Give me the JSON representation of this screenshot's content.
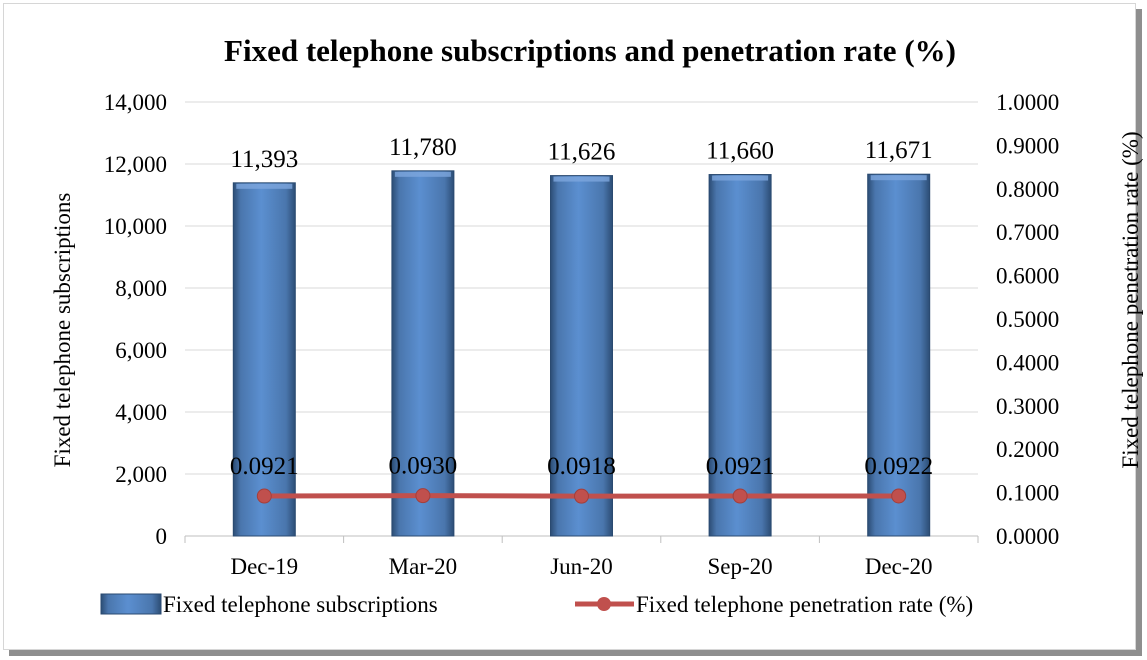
{
  "chart_data": {
    "type": "bar",
    "title": "Fixed telephone subscriptions and penetration rate (%)",
    "categories": [
      "Dec-19",
      "Mar-20",
      "Jun-20",
      "Sep-20",
      "Dec-20"
    ],
    "series": [
      {
        "name": "Fixed telephone subscriptions",
        "type": "bar",
        "axis": "left",
        "values": [
          11393,
          11780,
          11626,
          11660,
          11671
        ],
        "labels": [
          "11,393",
          "11,780",
          "11,626",
          "11,660",
          "11,671"
        ],
        "color": "#4f81bd"
      },
      {
        "name": "Fixed telephone penetration rate (%)",
        "type": "line",
        "axis": "right",
        "values": [
          0.0921,
          0.093,
          0.0918,
          0.0921,
          0.0922
        ],
        "labels": [
          "0.0921",
          "0.0930",
          "0.0918",
          "0.0921",
          "0.0922"
        ],
        "color": "#c0504d"
      }
    ],
    "ylabel": "Fixed telephone subscriptions",
    "y2label": "Fixed telephone penetration rate (%)",
    "ylim": [
      0,
      14000
    ],
    "y2lim": [
      0,
      1
    ],
    "yticks": [
      "0",
      "2,000",
      "4,000",
      "6,000",
      "8,000",
      "10,000",
      "12,000",
      "14,000"
    ],
    "y2ticks": [
      "0.0000",
      "0.1000",
      "0.2000",
      "0.3000",
      "0.4000",
      "0.5000",
      "0.6000",
      "0.7000",
      "0.8000",
      "0.9000",
      "1.0000"
    ],
    "grid": true,
    "legend_position": "bottom"
  }
}
